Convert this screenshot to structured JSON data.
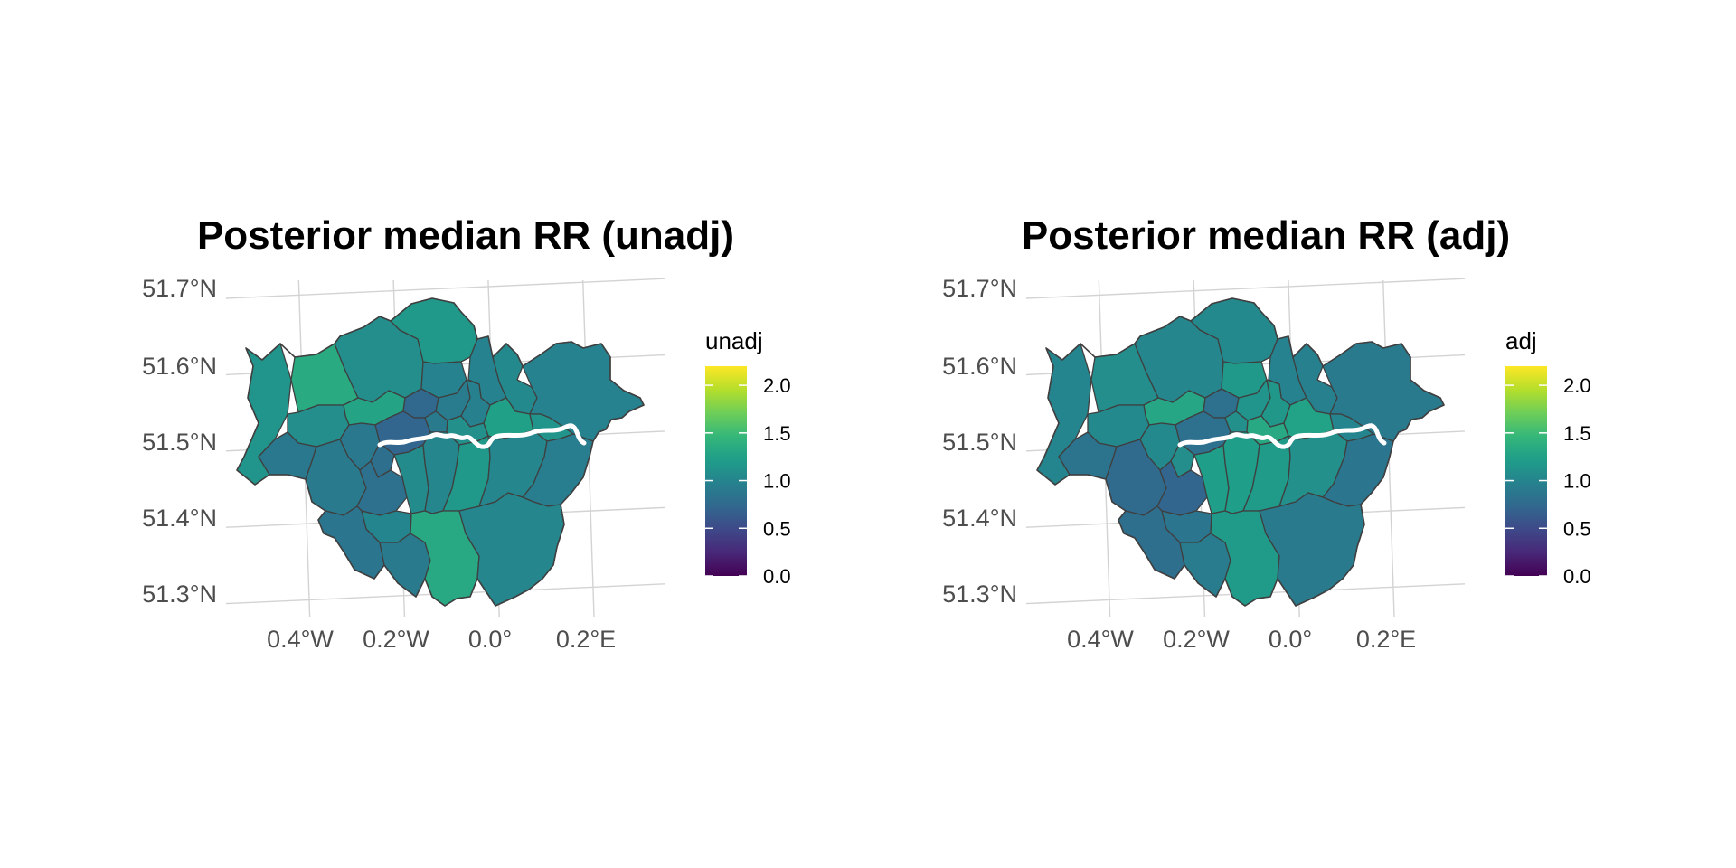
{
  "panels": [
    {
      "id": "unadj",
      "title": "Posterior median RR (unadj)",
      "legend_title": "unadj",
      "values": {
        "hillingdon": 1.14,
        "harrow": 1.34,
        "barnet": 1.08,
        "enfield": 1.18,
        "haringey": 0.98,
        "waltham": 0.98,
        "redbridge": 1.04,
        "havering": 0.98,
        "brent": 1.28,
        "camden": 0.74,
        "islington": 0.92,
        "hackney": 0.96,
        "ealing": 1.08,
        "westminster": 0.72,
        "towerhamlets": 1.1,
        "newham": 1.24,
        "bark": 1.14,
        "hounslow": 0.88,
        "hamfulham": 0.88,
        "kenchel": 0.8,
        "richmond": 0.9,
        "wandsworth": 0.82,
        "lambeth": 1.06,
        "southwark": 1.02,
        "lewisham": 1.18,
        "greenwich": 1.02,
        "bexley": 0.94,
        "kingston": 0.86,
        "merton": 1.0,
        "sutton": 0.9,
        "croydon": 1.32,
        "bromley": 1.02,
        "city": 0.9
      }
    },
    {
      "id": "adj",
      "title": "Posterior median RR (adj)",
      "legend_title": "adj",
      "values": {
        "hillingdon": 1.0,
        "harrow": 1.08,
        "barnet": 1.02,
        "enfield": 1.04,
        "haringey": 1.18,
        "waltham": 0.98,
        "redbridge": 0.96,
        "havering": 0.9,
        "brent": 1.3,
        "camden": 0.82,
        "islington": 1.14,
        "hackney": 1.16,
        "ealing": 1.04,
        "westminster": 0.82,
        "towerhamlets": 1.32,
        "newham": 1.26,
        "bark": 1.0,
        "hounslow": 0.84,
        "hamfulham": 1.04,
        "kenchel": 1.08,
        "richmond": 0.76,
        "wandsworth": 0.72,
        "lambeth": 1.22,
        "southwark": 1.22,
        "lewisham": 1.2,
        "greenwich": 1.1,
        "bexley": 0.86,
        "kingston": 0.8,
        "merton": 0.86,
        "sutton": 0.92,
        "croydon": 1.2,
        "bromley": 0.9,
        "city": 1.1
      }
    }
  ],
  "axes": {
    "lat_labels": [
      "51.7°N",
      "51.6°N",
      "51.5°N",
      "51.4°N",
      "51.3°N"
    ],
    "lon_labels": [
      "0.4°W",
      "0.2°W",
      "0.0°",
      "0.2°E"
    ]
  },
  "legend": {
    "scale": "viridis",
    "range": [
      0,
      2.2
    ],
    "ticks": [
      "0.0",
      "0.5",
      "1.0",
      "1.5",
      "2.0"
    ]
  },
  "colors": {
    "background": "#ffffff",
    "gridline": "#d3d3d3",
    "border": "#3f3f3f",
    "river": "#ffffff"
  }
}
